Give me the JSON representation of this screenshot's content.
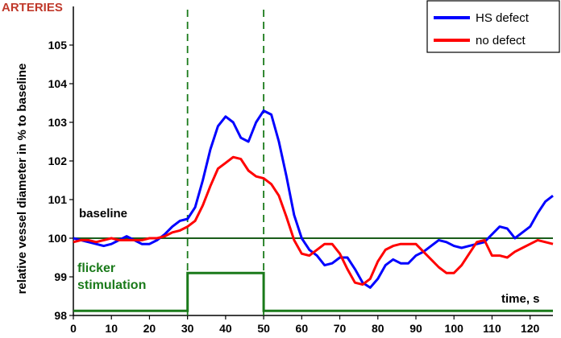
{
  "chart_data": {
    "type": "line",
    "title": "ARTERIES",
    "xlabel": "time, s",
    "ylabel": "relative vessel diameter in % to baseline",
    "xlim": [
      0,
      126
    ],
    "ylim": [
      98,
      106
    ],
    "x_ticks": [
      0,
      10,
      20,
      30,
      40,
      50,
      60,
      70,
      80,
      90,
      100,
      110,
      120
    ],
    "y_ticks": [
      98,
      99,
      100,
      101,
      102,
      103,
      104,
      105
    ],
    "grid": false,
    "legend_position": "top-right",
    "colors": {
      "title": "#c0392b",
      "hs": "#0000ff",
      "nodef": "#ff0000",
      "green": "#1a7a1a"
    },
    "annotations": {
      "baseline_label": "baseline",
      "flicker_label_1": "flicker",
      "flicker_label_2": "stimulation",
      "dashed_lines_x": [
        30,
        50
      ]
    },
    "baseline_value": 100,
    "stimulation": {
      "low": 98.12,
      "high": 99.1,
      "start": 30,
      "end": 50
    },
    "series": [
      {
        "name": "HS defect",
        "x": [
          0,
          2,
          4,
          6,
          8,
          10,
          12,
          14,
          16,
          18,
          20,
          22,
          24,
          26,
          28,
          30,
          32,
          34,
          36,
          38,
          40,
          42,
          44,
          46,
          48,
          50,
          52,
          54,
          56,
          58,
          60,
          62,
          64,
          66,
          68,
          70,
          72,
          74,
          76,
          78,
          80,
          82,
          84,
          86,
          88,
          90,
          92,
          94,
          96,
          98,
          100,
          102,
          104,
          106,
          108,
          110,
          112,
          114,
          116,
          118,
          120,
          122,
          124,
          126
        ],
        "values": [
          100.0,
          99.95,
          99.9,
          99.85,
          99.8,
          99.85,
          99.95,
          100.05,
          99.95,
          99.85,
          99.85,
          99.95,
          100.1,
          100.3,
          100.45,
          100.5,
          100.8,
          101.5,
          102.3,
          102.9,
          103.15,
          103.0,
          102.6,
          102.5,
          103.0,
          103.3,
          103.2,
          102.5,
          101.6,
          100.6,
          100.0,
          99.7,
          99.55,
          99.3,
          99.35,
          99.5,
          99.5,
          99.2,
          98.85,
          98.72,
          98.95,
          99.3,
          99.45,
          99.35,
          99.35,
          99.55,
          99.65,
          99.8,
          99.95,
          99.9,
          99.8,
          99.75,
          99.8,
          99.85,
          99.9,
          100.1,
          100.3,
          100.25,
          100.0,
          100.15,
          100.3,
          100.65,
          100.95,
          101.1
        ]
      },
      {
        "name": "no defect",
        "x": [
          0,
          2,
          4,
          6,
          8,
          10,
          12,
          14,
          16,
          18,
          20,
          22,
          24,
          26,
          28,
          30,
          32,
          34,
          36,
          38,
          40,
          42,
          44,
          46,
          48,
          50,
          52,
          54,
          56,
          58,
          60,
          62,
          64,
          66,
          68,
          70,
          72,
          74,
          76,
          78,
          80,
          82,
          84,
          86,
          88,
          90,
          92,
          94,
          96,
          98,
          100,
          102,
          104,
          106,
          108,
          110,
          112,
          114,
          116,
          118,
          120,
          122,
          124,
          126
        ],
        "values": [
          99.9,
          99.95,
          99.95,
          99.9,
          99.95,
          100.0,
          99.95,
          99.95,
          99.95,
          99.95,
          100.0,
          100.0,
          100.05,
          100.15,
          100.2,
          100.3,
          100.45,
          100.85,
          101.35,
          101.8,
          101.95,
          102.1,
          102.05,
          101.75,
          101.6,
          101.55,
          101.4,
          101.1,
          100.55,
          99.95,
          99.6,
          99.55,
          99.7,
          99.85,
          99.85,
          99.6,
          99.2,
          98.85,
          98.8,
          98.95,
          99.4,
          99.7,
          99.8,
          99.85,
          99.85,
          99.85,
          99.65,
          99.45,
          99.25,
          99.1,
          99.1,
          99.3,
          99.6,
          99.9,
          99.95,
          99.55,
          99.55,
          99.5,
          99.65,
          99.75,
          99.85,
          99.95,
          99.9,
          99.85
        ]
      }
    ]
  }
}
